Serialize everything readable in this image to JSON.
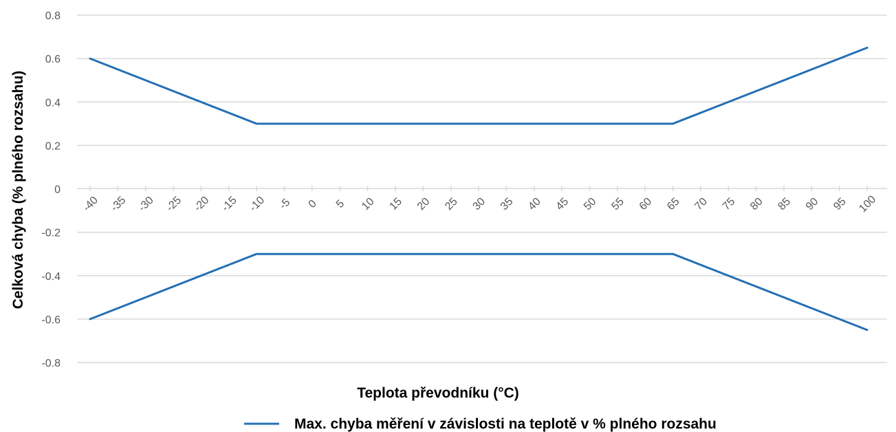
{
  "chart_data": {
    "type": "line",
    "title": "",
    "xlabel": "Teplota převodníku (°C)",
    "ylabel": "Celková chyba (% plného rozsahu)",
    "x": [
      "-40",
      "-35",
      "-30",
      "-25",
      "-20",
      "-15",
      "-10",
      "-5",
      "0",
      "5",
      "10",
      "15",
      "20",
      "25",
      "30",
      "35",
      "40",
      "45",
      "50",
      "55",
      "60",
      "65",
      "70",
      "75",
      "80",
      "85",
      "90",
      "95",
      "100"
    ],
    "ylim": [
      -0.8,
      0.8
    ],
    "yticks": [
      "0.8",
      "0.6",
      "0.4",
      "0.2",
      "0",
      "-0.2",
      "-0.4",
      "-0.6",
      "-0.8"
    ],
    "grid": true,
    "legend_position": "bottom",
    "series": [
      {
        "name": "Max. chyba měření v závislosti na teplotě v % plného rozsahu",
        "points": [
          [
            -40,
            0.6
          ],
          [
            -10,
            0.3
          ],
          [
            65,
            0.3
          ],
          [
            100,
            0.65
          ]
        ]
      },
      {
        "points": [
          [
            -40,
            -0.6
          ],
          [
            -10,
            -0.3
          ],
          [
            65,
            -0.3
          ],
          [
            100,
            -0.65
          ]
        ]
      }
    ],
    "colors": {
      "line": "#2470b5",
      "grid": "#d9d9d9",
      "tick_text": "#595959"
    }
  }
}
